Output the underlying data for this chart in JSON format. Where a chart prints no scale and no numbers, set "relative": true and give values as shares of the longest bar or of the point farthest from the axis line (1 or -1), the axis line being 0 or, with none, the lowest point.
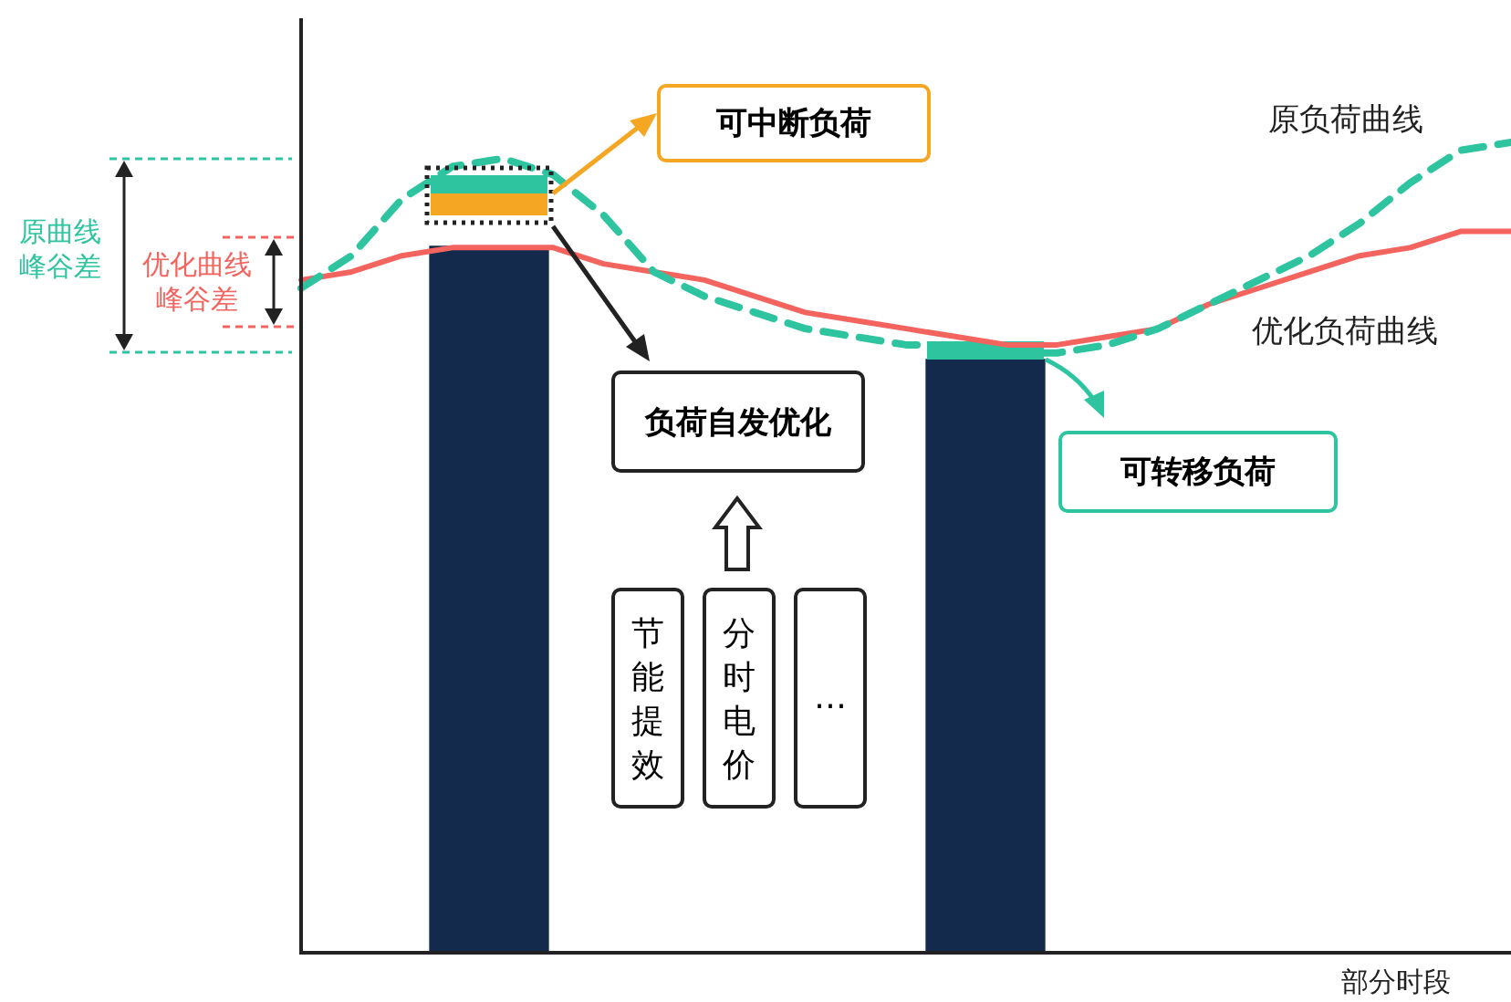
{
  "chart_data": [
    {
      "type": "line",
      "relative": true,
      "xlabel": "部分时段",
      "legend": false,
      "marker": "none",
      "categories": [
        null,
        null,
        null,
        null,
        null,
        null,
        null,
        null,
        null,
        null,
        null,
        null,
        null,
        null,
        null,
        null,
        null,
        null,
        null,
        null,
        null,
        null,
        null,
        null,
        null
      ],
      "series": [
        {
          "name": "原负荷曲线",
          "color": "#2ec4a0",
          "line_style": "dashed",
          "values": [
            0.82,
            0.86,
            0.93,
            0.97,
            0.98,
            0.96,
            0.91,
            0.84,
            0.81,
            0.79,
            0.77,
            0.76,
            0.75,
            0.75,
            0.74,
            0.74,
            0.75,
            0.77,
            0.8,
            0.83,
            0.86,
            0.9,
            0.95,
            0.99,
            1
          ]
        },
        {
          "name": "优化负荷曲线",
          "color": "#f4645f",
          "line_style": "solid",
          "values": [
            0.83,
            0.84,
            0.86,
            0.87,
            0.87,
            0.87,
            0.85,
            0.84,
            0.83,
            0.81,
            0.79,
            0.78,
            0.77,
            0.76,
            0.75,
            0.75,
            0.76,
            0.77,
            0.8,
            0.82,
            0.84,
            0.86,
            0.87,
            0.89,
            0.89
          ]
        }
      ],
      "annotations": [
        "可中断负荷",
        "负荷自发优化",
        "可转移负荷",
        "节能提效",
        "分时电价",
        "…",
        "原曲线峰谷差",
        "优化曲线峰谷差"
      ]
    },
    {
      "type": "bar",
      "relative": true,
      "categories": [
        null,
        null
      ],
      "series": [
        {
          "color": "#142a4c",
          "values": [
            1,
            0.84
          ]
        }
      ]
    }
  ]
}
